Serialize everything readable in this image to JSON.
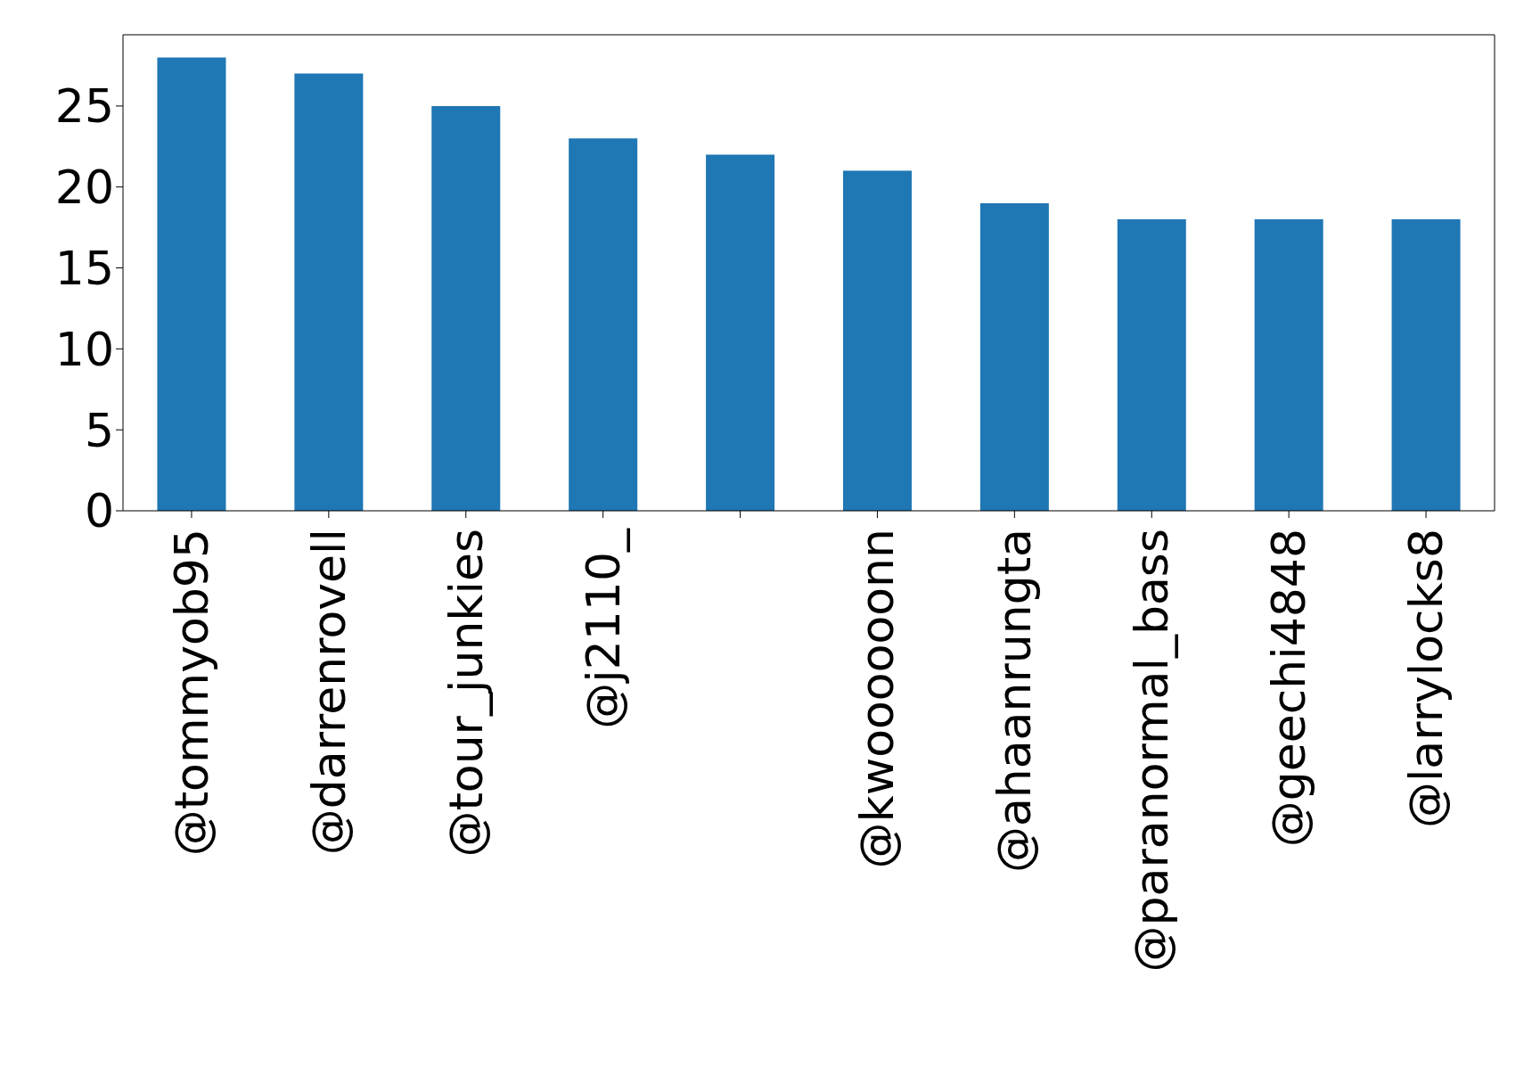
{
  "chart_data": {
    "type": "bar",
    "categories": [
      "@tommyob95",
      "@darrenrovell",
      "@tour_junkies",
      "@j2110_",
      null,
      "@kwoooooonn",
      "@ahaanrungta",
      "@paranormal_bass",
      "@geechi4848",
      "@larrylocks8"
    ],
    "values": [
      28,
      27,
      25,
      23,
      22,
      21,
      19,
      18,
      18,
      18
    ],
    "color": "#1f77b4",
    "ylim": [
      0,
      29.4
    ],
    "yticks": [
      0,
      5,
      10,
      15,
      20,
      25
    ],
    "grid": false,
    "legend": false
  }
}
